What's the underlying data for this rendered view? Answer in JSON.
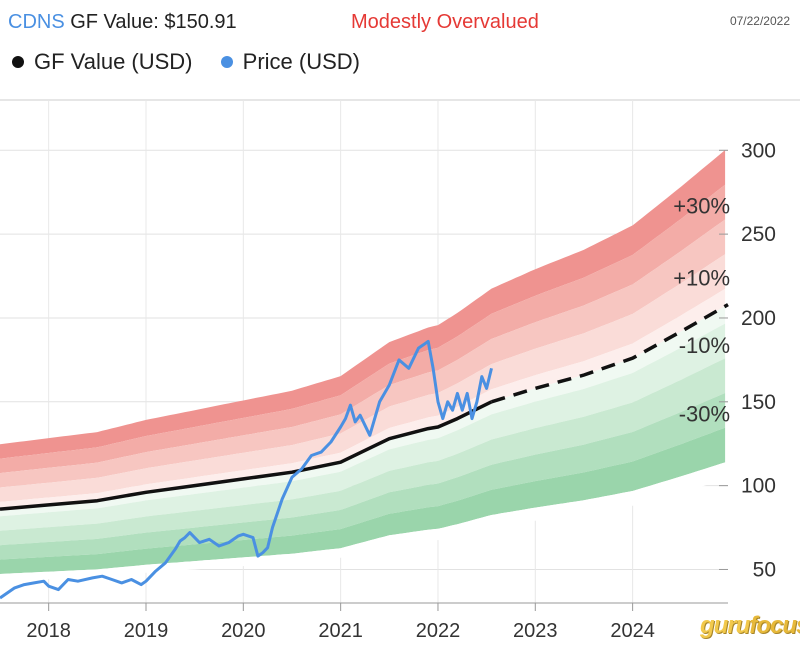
{
  "header": {
    "ticker": "CDNS",
    "gf_value_label": " GF Value: $150.91",
    "verdict": "Modestly Overvalued",
    "date": "07/22/2022"
  },
  "legend": {
    "gf_value": "GF Value (USD)",
    "price": "Price (USD)",
    "gf_color": "#111111",
    "price_color": "#4a90e2"
  },
  "logo": {
    "part1": "guru",
    "part2": "focus"
  },
  "chart_data": {
    "type": "line",
    "title": "CDNS GF Value: $150.91",
    "xlabel": "",
    "ylabel": "USD",
    "xlim": [
      2017.5,
      2024.98
    ],
    "ylim": [
      30,
      330
    ],
    "x_ticks": [
      2018,
      2019,
      2020,
      2021,
      2022,
      2023,
      2024
    ],
    "y_ticks": [
      50,
      100,
      150,
      200,
      250,
      300
    ],
    "band_labels": [
      {
        "label": "+30%",
        "x": 2024.2,
        "y": 267
      },
      {
        "label": "+10%",
        "x": 2024.2,
        "y": 224
      },
      {
        "label": "-10%",
        "x": 2024.2,
        "y": 184
      },
      {
        "label": "-30%",
        "x": 2024.2,
        "y": 143
      }
    ],
    "gf_value": {
      "name": "GF Value (USD)",
      "x": [
        2017.5,
        2018.0,
        2018.5,
        2019.0,
        2019.5,
        2020.0,
        2020.5,
        2021.0,
        2021.5,
        2021.9,
        2022.0,
        2022.2,
        2022.55
      ],
      "y": [
        86,
        88.5,
        91,
        96,
        100,
        104,
        108,
        114,
        128,
        134,
        135,
        140,
        150
      ],
      "projected_x": [
        2022.55,
        2023.0,
        2023.5,
        2024.0,
        2024.5,
        2024.98
      ],
      "projected_y": [
        150,
        158,
        166,
        176,
        192,
        208
      ]
    },
    "price": {
      "name": "Price (USD)",
      "x": [
        2017.5,
        2017.65,
        2017.75,
        2017.85,
        2017.95,
        2018.0,
        2018.1,
        2018.2,
        2018.3,
        2018.45,
        2018.55,
        2018.65,
        2018.75,
        2018.85,
        2018.95,
        2019.0,
        2019.1,
        2019.2,
        2019.3,
        2019.35,
        2019.4,
        2019.45,
        2019.55,
        2019.65,
        2019.75,
        2019.85,
        2019.95,
        2020.0,
        2020.1,
        2020.15,
        2020.2,
        2020.25,
        2020.3,
        2020.4,
        2020.5,
        2020.6,
        2020.7,
        2020.8,
        2020.9,
        2021.0,
        2021.05,
        2021.1,
        2021.15,
        2021.2,
        2021.3,
        2021.4,
        2021.5,
        2021.6,
        2021.7,
        2021.8,
        2021.85,
        2021.9,
        2021.95,
        2022.0,
        2022.05,
        2022.1,
        2022.15,
        2022.2,
        2022.25,
        2022.3,
        2022.35,
        2022.4,
        2022.45,
        2022.5,
        2022.55
      ],
      "y": [
        33,
        39,
        41,
        42,
        43,
        40,
        38,
        44,
        43,
        45,
        46,
        44,
        42,
        44,
        41,
        43,
        49,
        54,
        62,
        67,
        69,
        72,
        66,
        68,
        64,
        66,
        70,
        71,
        69,
        58,
        60,
        63,
        75,
        92,
        105,
        110,
        118,
        120,
        126,
        135,
        140,
        148,
        138,
        142,
        130,
        150,
        160,
        175,
        170,
        182,
        184,
        186,
        170,
        150,
        140,
        150,
        145,
        155,
        145,
        155,
        140,
        150,
        165,
        158,
        170
      ]
    }
  }
}
